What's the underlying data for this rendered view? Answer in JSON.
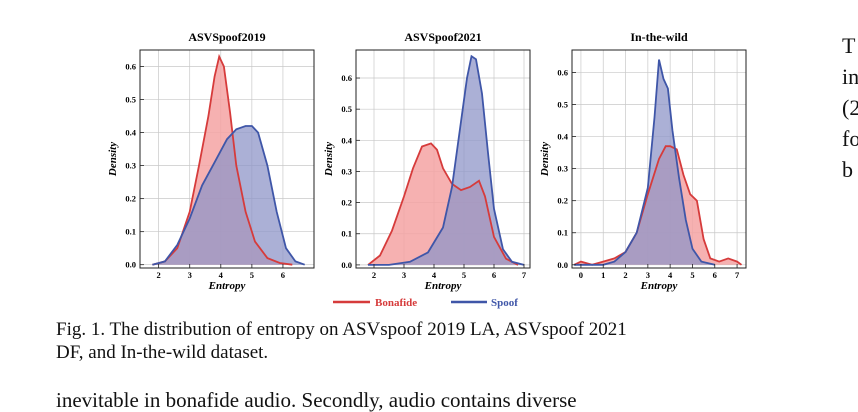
{
  "colors": {
    "bonafide_line": "#d63b3b",
    "bonafide_fill": "#f4a3a3",
    "spoof_line": "#3f56a8",
    "spoof_fill": "#8f95c8",
    "overlap_fill": "#a678ab",
    "grid": "#c8c8c8"
  },
  "legend": {
    "bonafide": "Bonafide",
    "spoof": "Spoof"
  },
  "chart_data": [
    {
      "type": "area",
      "title": "ASVSpoof2019",
      "xlabel": "Entropy",
      "ylabel": "Density",
      "xlim": [
        1.4,
        7.0
      ],
      "ylim": [
        -0.01,
        0.65
      ],
      "xticks": [
        2,
        3,
        4,
        5,
        6
      ],
      "yticks": [
        0.0,
        0.1,
        0.2,
        0.3,
        0.4,
        0.5,
        0.6
      ],
      "ytick_labels": [
        "0.0",
        "0.1",
        "0.2",
        "0.3",
        "0.4",
        "0.5",
        "0.6"
      ],
      "grid": true,
      "series": [
        {
          "name": "Bonafide",
          "x": [
            1.8,
            2.2,
            2.6,
            3.0,
            3.3,
            3.6,
            3.8,
            3.95,
            4.1,
            4.3,
            4.5,
            4.8,
            5.1,
            5.5,
            5.9,
            6.3
          ],
          "y": [
            0.0,
            0.01,
            0.05,
            0.16,
            0.3,
            0.45,
            0.57,
            0.63,
            0.6,
            0.46,
            0.3,
            0.16,
            0.07,
            0.02,
            0.005,
            0.0
          ]
        },
        {
          "name": "Spoof",
          "x": [
            1.8,
            2.2,
            2.6,
            3.0,
            3.4,
            3.8,
            4.2,
            4.5,
            4.8,
            5.0,
            5.2,
            5.5,
            5.8,
            6.1,
            6.4,
            6.7
          ],
          "y": [
            0.0,
            0.01,
            0.06,
            0.14,
            0.24,
            0.31,
            0.38,
            0.41,
            0.42,
            0.42,
            0.4,
            0.3,
            0.16,
            0.05,
            0.01,
            0.0
          ]
        }
      ]
    },
    {
      "type": "area",
      "title": "ASVSpoof2021",
      "xlabel": "Entropy",
      "ylabel": "Density",
      "xlim": [
        1.4,
        7.2
      ],
      "ylim": [
        -0.01,
        0.69
      ],
      "xticks": [
        2,
        3,
        4,
        5,
        6,
        7
      ],
      "yticks": [
        0.0,
        0.1,
        0.2,
        0.3,
        0.4,
        0.5,
        0.6
      ],
      "ytick_labels": [
        "0.0",
        "0.1",
        "0.2",
        "0.3",
        "0.4",
        "0.5",
        "0.6"
      ],
      "grid": true,
      "series": [
        {
          "name": "Bonafide",
          "x": [
            1.8,
            2.2,
            2.6,
            3.0,
            3.3,
            3.6,
            3.9,
            4.1,
            4.3,
            4.6,
            4.9,
            5.2,
            5.5,
            5.7,
            6.0,
            6.4,
            6.8
          ],
          "y": [
            0.0,
            0.03,
            0.11,
            0.22,
            0.31,
            0.38,
            0.39,
            0.37,
            0.31,
            0.26,
            0.24,
            0.25,
            0.27,
            0.22,
            0.09,
            0.02,
            0.0
          ]
        },
        {
          "name": "Spoof",
          "x": [
            1.8,
            2.5,
            3.2,
            3.8,
            4.3,
            4.6,
            4.9,
            5.1,
            5.25,
            5.4,
            5.6,
            5.8,
            6.0,
            6.3,
            6.6,
            7.0
          ],
          "y": [
            0.0,
            0.0,
            0.01,
            0.04,
            0.12,
            0.25,
            0.46,
            0.6,
            0.67,
            0.66,
            0.55,
            0.36,
            0.18,
            0.05,
            0.01,
            0.0
          ]
        }
      ]
    },
    {
      "type": "area",
      "title": "In-the-wild",
      "xlabel": "Entropy",
      "ylabel": "Density",
      "xlim": [
        -0.4,
        7.4
      ],
      "ylim": [
        -0.01,
        0.67
      ],
      "xticks": [
        0,
        1,
        2,
        3,
        4,
        5,
        6,
        7
      ],
      "yticks": [
        0.0,
        0.1,
        0.2,
        0.3,
        0.4,
        0.5,
        0.6
      ],
      "ytick_labels": [
        "0.0",
        "0.1",
        "0.2",
        "0.3",
        "0.4",
        "0.5",
        "0.6"
      ],
      "grid": true,
      "series": [
        {
          "name": "Bonafide",
          "x": [
            -0.3,
            0.0,
            0.5,
            1.0,
            1.5,
            2.0,
            2.5,
            3.0,
            3.5,
            3.8,
            4.0,
            4.3,
            4.6,
            4.9,
            5.2,
            5.5,
            5.8,
            6.2,
            6.6,
            7.0,
            7.2
          ],
          "y": [
            0.0,
            0.01,
            0.0,
            0.01,
            0.02,
            0.04,
            0.1,
            0.22,
            0.33,
            0.37,
            0.37,
            0.36,
            0.28,
            0.22,
            0.2,
            0.08,
            0.02,
            0.01,
            0.02,
            0.01,
            0.0
          ]
        },
        {
          "name": "Spoof",
          "x": [
            -0.3,
            1.0,
            1.5,
            2.0,
            2.5,
            3.0,
            3.3,
            3.5,
            3.7,
            3.9,
            4.1,
            4.4,
            4.7,
            5.0,
            5.4,
            6.0
          ],
          "y": [
            0.0,
            0.0,
            0.01,
            0.04,
            0.1,
            0.24,
            0.46,
            0.64,
            0.58,
            0.55,
            0.42,
            0.27,
            0.14,
            0.05,
            0.01,
            0.0
          ]
        }
      ]
    }
  ],
  "caption": {
    "line1": "Fig. 1.  The distribution of entropy on ASVspoof 2019 LA, ASVspoof 2021",
    "line2": "DF, and In-the-wild dataset."
  },
  "body_text": "inevitable in bonafide audio. Secondly, audio contains diverse",
  "side_text": [
    "T",
    "in",
    "(2",
    "fo",
    "b"
  ]
}
